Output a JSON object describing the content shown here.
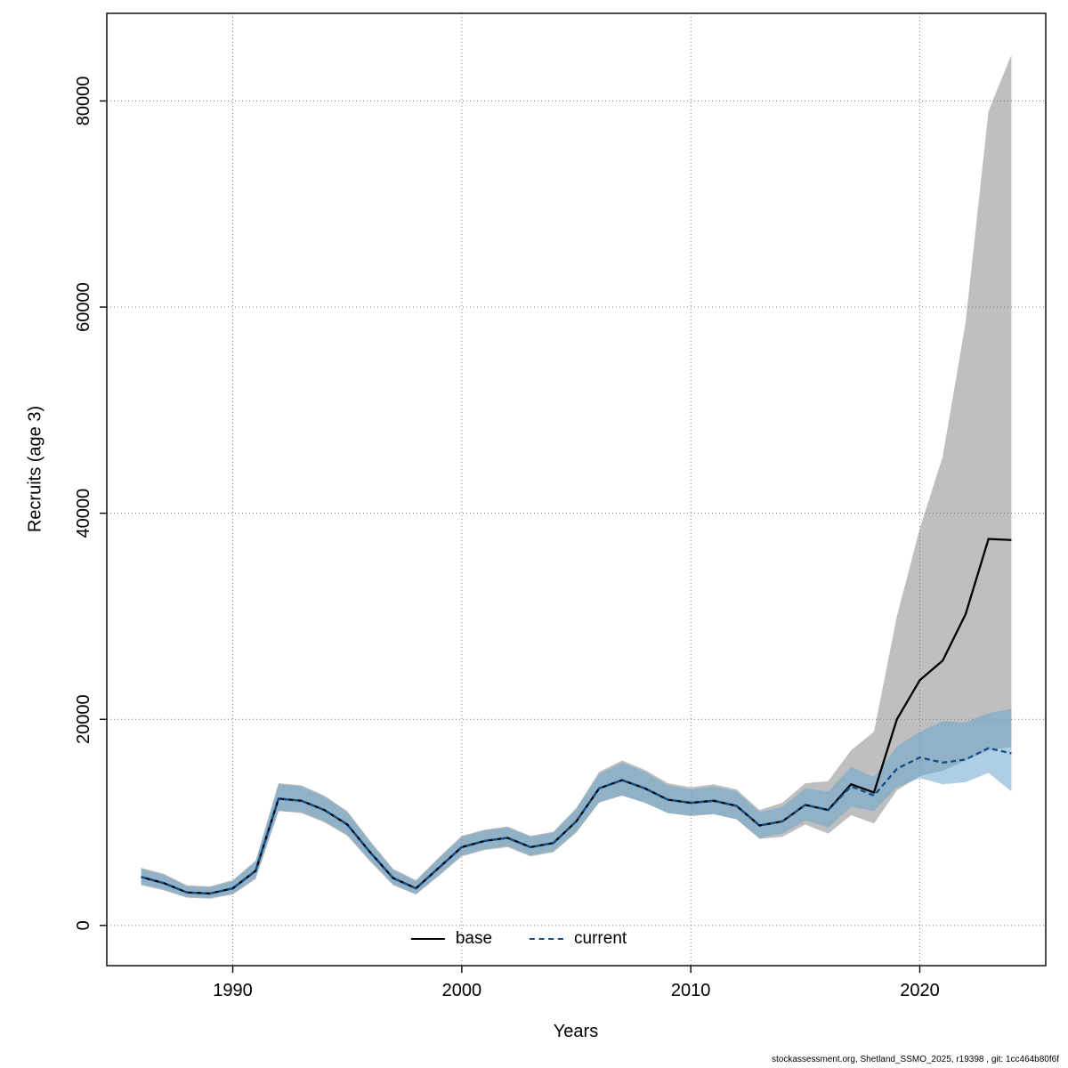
{
  "page": {
    "footer": "stockassessment.org, Shetland_SSMO_2025, r19398 , git: 1cc464b80f6f"
  },
  "chart_data": {
    "type": "line",
    "title": "",
    "xlabel": "Years",
    "ylabel": "Recruits (age 3)",
    "xlim": [
      1984.5,
      2025.5
    ],
    "ylim": [
      -3900,
      88500
    ],
    "x_ticks": [
      1990,
      2000,
      2010,
      2020
    ],
    "y_ticks": [
      0,
      20000,
      40000,
      60000,
      80000
    ],
    "grid": "dotted",
    "colors": {
      "grid": "#7a7a7a",
      "axis": "#000000",
      "base_line": "#000000",
      "base_band": "rgba(128,128,128,0.50)",
      "current_line": "#104E8B",
      "current_band": "rgba(108,166,205,0.55)"
    },
    "legend": {
      "position": "bottom-center-inside",
      "entries": [
        {
          "label": "base",
          "line": "solid",
          "color": "#000000"
        },
        {
          "label": "current",
          "line": "dashed",
          "color": "#104E8B"
        }
      ]
    },
    "years": [
      1986,
      1987,
      1988,
      1989,
      1990,
      1991,
      1992,
      1993,
      1994,
      1995,
      1996,
      1997,
      1998,
      1999,
      2000,
      2001,
      2002,
      2003,
      2004,
      2005,
      2006,
      2007,
      2008,
      2009,
      2010,
      2011,
      2012,
      2013,
      2014,
      2015,
      2016,
      2017,
      2018,
      2019,
      2020,
      2021,
      2022,
      2023,
      2024
    ],
    "series": [
      {
        "name": "base",
        "line": "solid",
        "values": [
          4700,
          4100,
          3200,
          3100,
          3600,
          5300,
          12300,
          12100,
          11200,
          9800,
          7100,
          4600,
          3600,
          5600,
          7600,
          8200,
          8500,
          7600,
          8000,
          10100,
          13300,
          14100,
          13300,
          12200,
          11900,
          12100,
          11600,
          9700,
          10100,
          11700,
          11200,
          13700,
          12900,
          20000,
          23800,
          25700,
          30200,
          37500,
          37400
        ],
        "lower": [
          3900,
          3400,
          2700,
          2600,
          3000,
          4500,
          11100,
          10900,
          10000,
          8700,
          6200,
          3900,
          3000,
          4800,
          6700,
          7300,
          7600,
          6700,
          7100,
          9000,
          11900,
          12600,
          11900,
          10900,
          10600,
          10800,
          10300,
          8400,
          8600,
          9800,
          8900,
          10700,
          9900,
          13100,
          14500,
          15000,
          16000,
          17000,
          17300
        ],
        "upper": [
          5600,
          5000,
          3900,
          3800,
          4400,
          6300,
          13800,
          13600,
          12600,
          11100,
          8200,
          5500,
          4400,
          6600,
          8700,
          9300,
          9600,
          8700,
          9100,
          11400,
          14900,
          16000,
          15100,
          13800,
          13400,
          13700,
          13200,
          11200,
          11900,
          13800,
          14000,
          17000,
          18800,
          30000,
          38500,
          45500,
          58500,
          79000,
          84500
        ]
      },
      {
        "name": "current",
        "line": "dashed",
        "values": [
          4700,
          4100,
          3200,
          3100,
          3600,
          5300,
          12300,
          12100,
          11200,
          9800,
          7100,
          4600,
          3600,
          5600,
          7600,
          8200,
          8500,
          7600,
          8000,
          10100,
          13300,
          14100,
          13300,
          12200,
          11900,
          12100,
          11600,
          9700,
          10100,
          11700,
          11200,
          13500,
          12600,
          15200,
          16300,
          15800,
          16100,
          17200,
          16700
        ],
        "lower": [
          4000,
          3500,
          2750,
          2650,
          3100,
          4600,
          11100,
          11000,
          10100,
          8800,
          6300,
          4000,
          3050,
          4900,
          6800,
          7400,
          7700,
          6800,
          7200,
          9100,
          12000,
          12600,
          11900,
          10900,
          10700,
          10800,
          10300,
          8500,
          8900,
          10200,
          9500,
          11500,
          11100,
          13400,
          14300,
          13700,
          13900,
          14800,
          13000
        ],
        "upper": [
          5500,
          4900,
          3800,
          3700,
          4300,
          6200,
          13700,
          13500,
          12500,
          11000,
          8100,
          5400,
          4300,
          6500,
          8600,
          9200,
          9500,
          8600,
          9000,
          11300,
          14700,
          15800,
          14900,
          13600,
          13200,
          13500,
          13000,
          11000,
          11500,
          13300,
          13000,
          15400,
          14400,
          17400,
          18800,
          19800,
          19700,
          20600,
          21000
        ]
      }
    ]
  }
}
